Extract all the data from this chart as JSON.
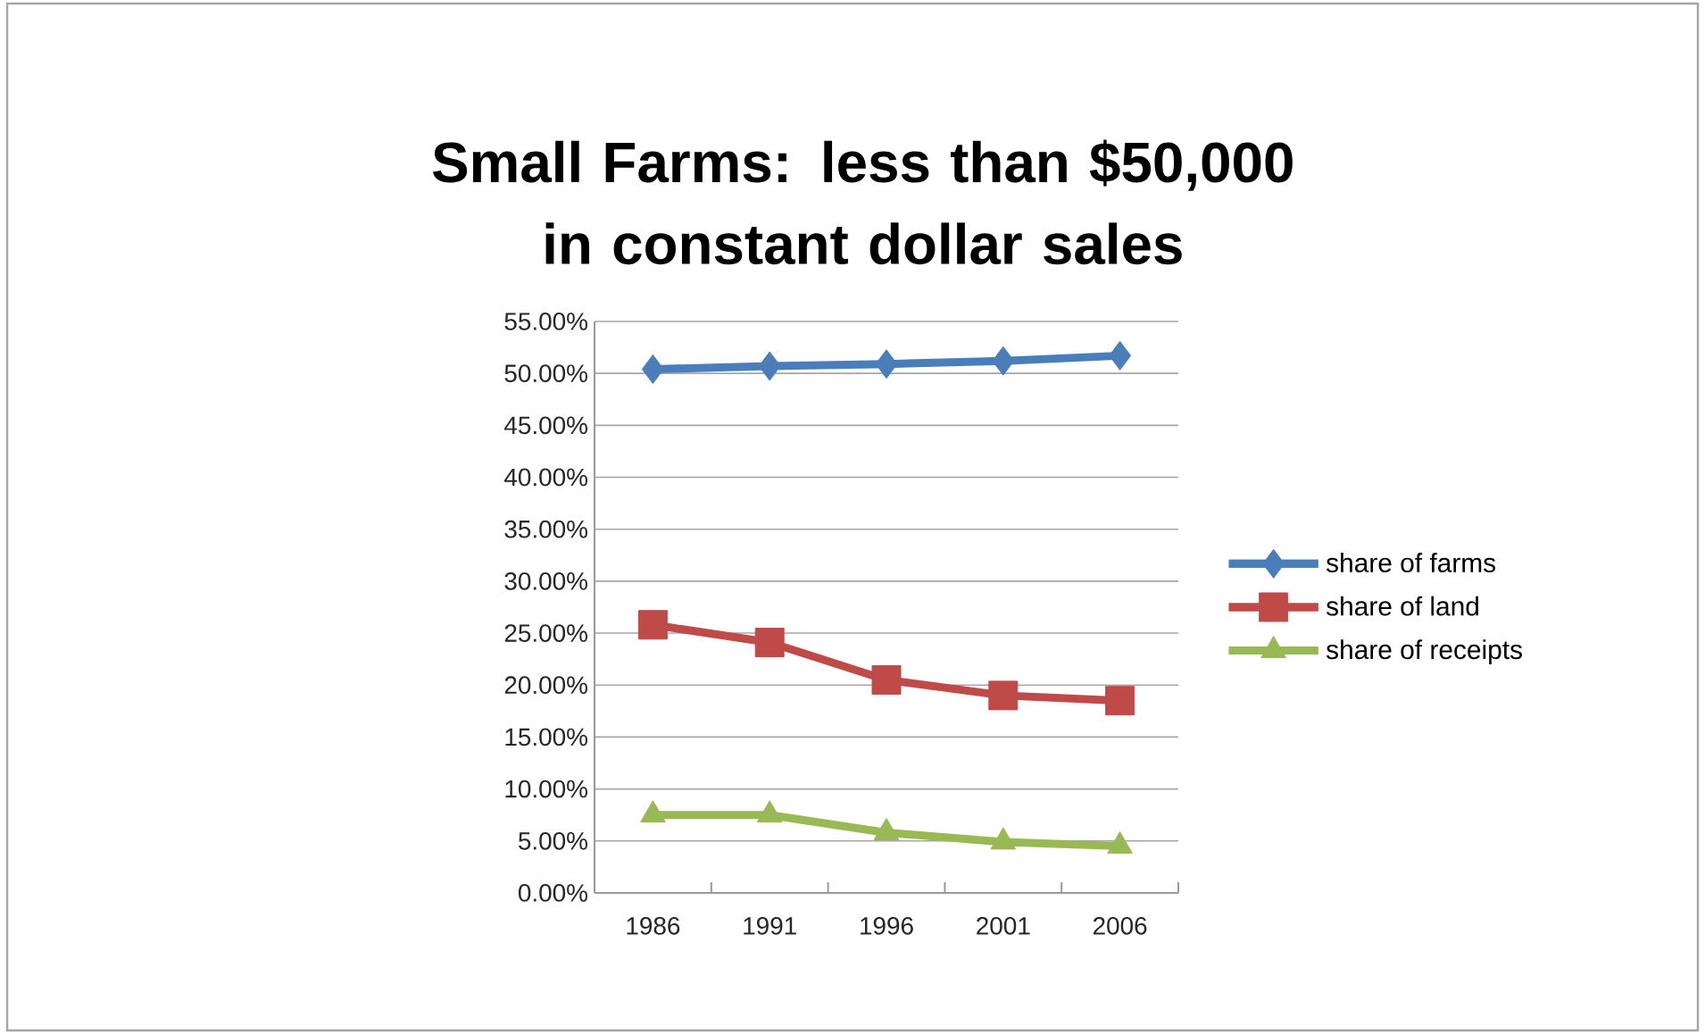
{
  "chart_data": {
    "type": "line",
    "title": "Small Farms: less than $50,000 in constant dollar sales",
    "categories": [
      "1986",
      "1991",
      "1996",
      "2001",
      "2006"
    ],
    "series": [
      {
        "name": "share of farms",
        "color": "#4a7ebb",
        "marker": "diamond",
        "values": [
          50.4,
          50.7,
          50.9,
          51.2,
          51.7
        ]
      },
      {
        "name": "share of land",
        "color": "#be4b48",
        "marker": "square",
        "values": [
          25.8,
          24.1,
          20.5,
          19.0,
          18.5
        ]
      },
      {
        "name": "share of receipts",
        "color": "#98b954",
        "marker": "triangle",
        "values": [
          7.5,
          7.5,
          5.8,
          4.9,
          4.5
        ]
      }
    ],
    "ylim": [
      0,
      55
    ],
    "yticks": [
      {
        "value": 0,
        "label": "0.00%"
      },
      {
        "value": 5,
        "label": "5.00%"
      },
      {
        "value": 10,
        "label": "10.00%"
      },
      {
        "value": 15,
        "label": "15.00%"
      },
      {
        "value": 20,
        "label": "20.00%"
      },
      {
        "value": 25,
        "label": "25.00%"
      },
      {
        "value": 30,
        "label": "30.00%"
      },
      {
        "value": 35,
        "label": "35.00%"
      },
      {
        "value": 40,
        "label": "40.00%"
      },
      {
        "value": 45,
        "label": "45.00%"
      },
      {
        "value": 50,
        "label": "50.00%"
      },
      {
        "value": 55,
        "label": "55.00%"
      }
    ],
    "grid": "y",
    "legend": "right",
    "line_style": "solid"
  }
}
